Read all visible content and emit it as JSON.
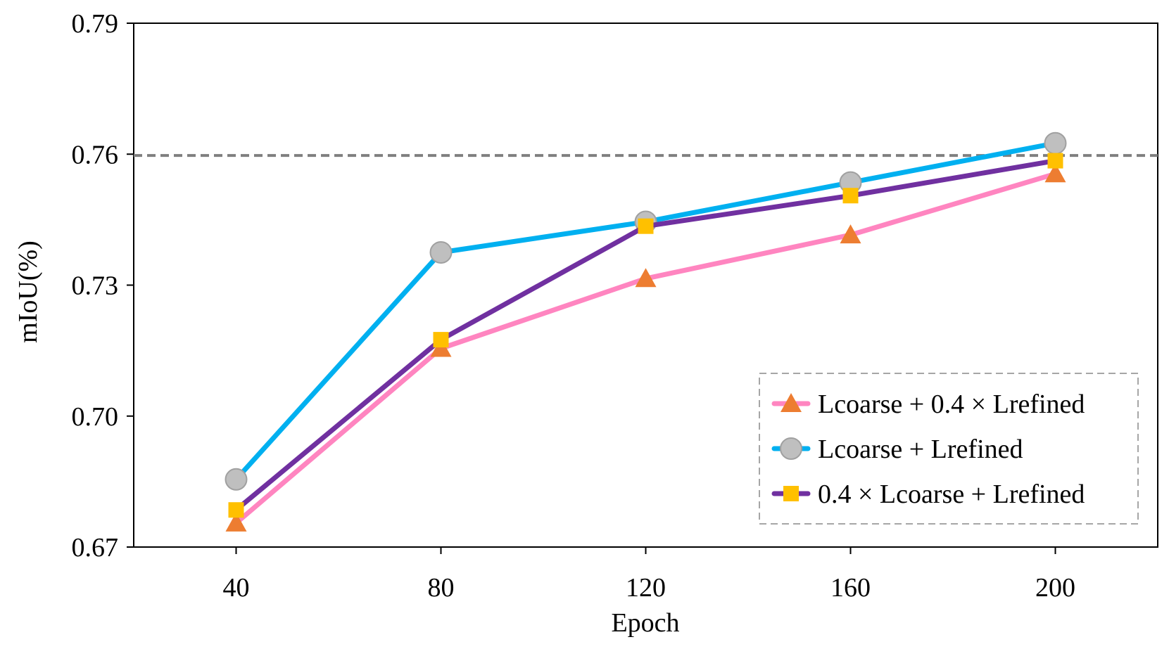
{
  "chart_data": {
    "type": "line",
    "title": "",
    "xlabel": "Epoch",
    "ylabel": "mIoU(%)",
    "x": [
      40,
      80,
      120,
      160,
      200
    ],
    "x_tick_labels": [
      "40",
      "80",
      "120",
      "160",
      "200"
    ],
    "xlim": [
      20,
      220
    ],
    "ylim": [
      0.67,
      0.79
    ],
    "y_ticks": [
      0.67,
      0.7,
      0.73,
      0.76,
      0.79
    ],
    "y_tick_labels": [
      "0.67",
      "0.70",
      "0.73",
      "0.76",
      "0.79"
    ],
    "grid": false,
    "legend_position": "bottom-right",
    "reference_line": {
      "y": 0.7597,
      "style": "dashed",
      "color": "#7f7f7f"
    },
    "series": [
      {
        "name": "Lcoarse + 0.4 × Lrefined",
        "values": [
          0.6755,
          0.7155,
          0.7315,
          0.7415,
          0.7555
        ],
        "line_color": "#ff85c0",
        "marker": "triangle",
        "marker_color": "#ed7d31"
      },
      {
        "name": "Lcoarse + Lrefined",
        "values": [
          0.6855,
          0.7375,
          0.7445,
          0.7535,
          0.7625
        ],
        "line_color": "#00b0f0",
        "marker": "circle",
        "marker_color": "#bfbfbf"
      },
      {
        "name": "0.4 × Lcoarse + Lrefined",
        "values": [
          0.6785,
          0.7175,
          0.7435,
          0.7505,
          0.7585
        ],
        "line_color": "#7030a0",
        "marker": "square",
        "marker_color": "#ffc000"
      }
    ]
  }
}
